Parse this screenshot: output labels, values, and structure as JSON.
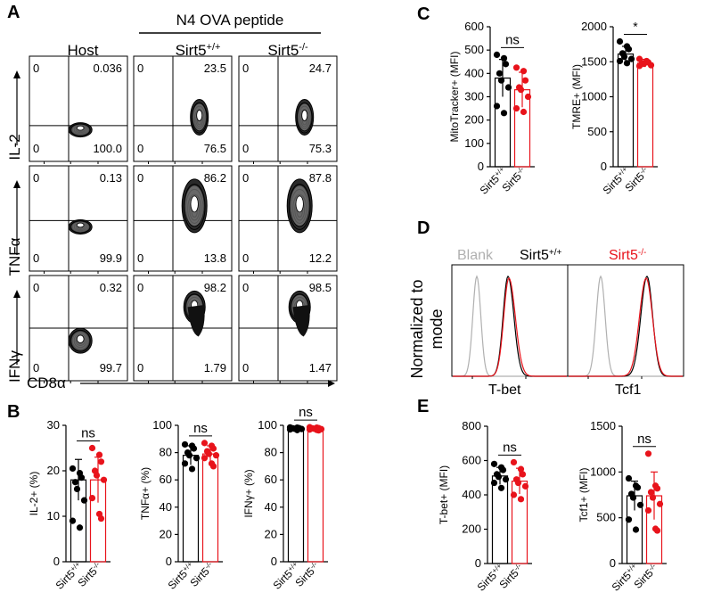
{
  "panel_letters": {
    "a": "A",
    "b": "B",
    "c": "C",
    "d": "D",
    "e": "E"
  },
  "genotypes": {
    "wt": "Sirt5+/+",
    "ko": "Sirt5-/-"
  },
  "colors": {
    "wt": "#000000",
    "ko": "#e8131b",
    "blank": "#b0b0b0",
    "contour_fill": "#8c8c8c"
  },
  "panel_a": {
    "header": "N4 OVA peptide",
    "columns": [
      "Host",
      "Sirt5+/+",
      "Sirt5-/-"
    ],
    "row_labels": [
      "IL-2",
      "TNFα",
      "IFNγ"
    ],
    "x_label": "CD8α",
    "grid": [
      [
        {
          "ul": "0",
          "ur": "0.036",
          "ll": "0",
          "lr": "100.0"
        },
        {
          "ul": "0",
          "ur": "23.5",
          "ll": "0",
          "lr": "76.5"
        },
        {
          "ul": "0",
          "ur": "24.7",
          "ll": "0",
          "lr": "75.3"
        }
      ],
      [
        {
          "ul": "0",
          "ur": "0.13",
          "ll": "0",
          "lr": "99.9"
        },
        {
          "ul": "0",
          "ur": "86.2",
          "ll": "0",
          "lr": "13.8"
        },
        {
          "ul": "0",
          "ur": "87.8",
          "ll": "0",
          "lr": "12.2"
        }
      ],
      [
        {
          "ul": "0",
          "ur": "0.32",
          "ll": "0",
          "lr": "99.7"
        },
        {
          "ul": "0",
          "ur": "98.2",
          "ll": "0",
          "lr": "1.79"
        },
        {
          "ul": "0",
          "ur": "98.5",
          "ll": "0",
          "lr": "1.47"
        }
      ]
    ]
  },
  "panel_d": {
    "legend": [
      "Blank",
      "Sirt5+/+",
      "Sirt5-/-"
    ],
    "y_label_line1": "Normalized to",
    "y_label_line2": "mode",
    "x_labels": [
      "T-bet",
      "Tcf1"
    ]
  },
  "chart_data": [
    {
      "type": "bar",
      "panel": "B",
      "ylabel": "IL-2+ (%)",
      "ylim": [
        0,
        30
      ],
      "yticks": [
        0,
        10,
        20,
        30
      ],
      "significance": "ns",
      "categories": [
        "Sirt5+/+",
        "Sirt5-/-"
      ],
      "series": [
        {
          "name": "Sirt5+/+",
          "mean": 18,
          "sd": 4.5,
          "points": [
            20.5,
            19.5,
            18.5,
            17.5,
            16,
            13.5,
            9,
            7.5
          ]
        },
        {
          "name": "Sirt5-/-",
          "mean": 18,
          "sd": 5,
          "points": [
            25,
            23.5,
            22,
            20,
            19,
            18,
            14,
            10.5,
            9.5
          ]
        }
      ]
    },
    {
      "type": "bar",
      "panel": "B",
      "ylabel": "TNFα+ (%)",
      "ylim": [
        0,
        100
      ],
      "yticks": [
        0,
        20,
        40,
        60,
        80,
        100
      ],
      "significance": "ns",
      "categories": [
        "Sirt5+/+",
        "Sirt5-/-"
      ],
      "series": [
        {
          "name": "Sirt5+/+",
          "mean": 78,
          "sd": 7,
          "points": [
            86,
            85,
            83,
            80,
            78,
            76,
            72,
            68
          ]
        },
        {
          "name": "Sirt5-/-",
          "mean": 79,
          "sd": 6,
          "points": [
            87,
            85,
            83,
            81,
            79,
            78,
            76,
            72,
            70
          ]
        }
      ]
    },
    {
      "type": "bar",
      "panel": "B",
      "ylabel": "IFNγ+ (%)",
      "ylim": [
        0,
        100
      ],
      "yticks": [
        0,
        20,
        40,
        60,
        80,
        100
      ],
      "significance": "ns",
      "categories": [
        "Sirt5+/+",
        "Sirt5-/-"
      ],
      "series": [
        {
          "name": "Sirt5+/+",
          "mean": 97.5,
          "sd": 0.8,
          "points": [
            98.5,
            98.3,
            98,
            97.8,
            97.5,
            97.3,
            97,
            96.5
          ]
        },
        {
          "name": "Sirt5-/-",
          "mean": 97.5,
          "sd": 0.9,
          "points": [
            98.6,
            98.3,
            98,
            97.8,
            97.5,
            97.2,
            96.9,
            96.6,
            96.3
          ]
        }
      ]
    },
    {
      "type": "bar",
      "panel": "C",
      "ylabel": "MitoTracker+ (MFI)",
      "ylim": [
        0,
        600
      ],
      "yticks": [
        0,
        100,
        200,
        300,
        400,
        500,
        600
      ],
      "significance": "ns",
      "categories": [
        "Sirt5+/+",
        "Sirt5-/-"
      ],
      "series": [
        {
          "name": "Sirt5+/+",
          "mean": 380,
          "sd": 80,
          "points": [
            480,
            465,
            440,
            400,
            370,
            340,
            260,
            230
          ]
        },
        {
          "name": "Sirt5-/-",
          "mean": 330,
          "sd": 75,
          "points": [
            425,
            410,
            370,
            340,
            330,
            300,
            250,
            235
          ]
        }
      ]
    },
    {
      "type": "bar",
      "panel": "C",
      "ylabel": "TMRE+ (MFI)",
      "ylim": [
        0,
        2000
      ],
      "yticks": [
        0,
        500,
        1000,
        1500,
        2000
      ],
      "significance": "*",
      "categories": [
        "Sirt5+/+",
        "Sirt5-/-"
      ],
      "series": [
        {
          "name": "Sirt5+/+",
          "mean": 1610,
          "sd": 110,
          "points": [
            1790,
            1720,
            1680,
            1620,
            1570,
            1540,
            1510,
            1480
          ]
        },
        {
          "name": "Sirt5-/-",
          "mean": 1480,
          "sd": 55,
          "points": [
            1540,
            1510,
            1490,
            1480,
            1470,
            1450,
            1440
          ]
        }
      ]
    },
    {
      "type": "bar",
      "panel": "E",
      "ylabel": "T-bet+ (MFI)",
      "ylim": [
        0,
        800
      ],
      "yticks": [
        0,
        200,
        400,
        600,
        800
      ],
      "significance": "ns",
      "categories": [
        "Sirt5+/+",
        "Sirt5-/-"
      ],
      "series": [
        {
          "name": "Sirt5+/+",
          "mean": 510,
          "sd": 50,
          "points": [
            580,
            560,
            545,
            520,
            505,
            490,
            470,
            440
          ]
        },
        {
          "name": "Sirt5-/-",
          "mean": 480,
          "sd": 75,
          "points": [
            590,
            550,
            520,
            490,
            470,
            450,
            400,
            375
          ]
        }
      ]
    },
    {
      "type": "bar",
      "panel": "E",
      "ylabel": "Tcf1+ (MFI)",
      "ylim": [
        0,
        1500
      ],
      "yticks": [
        0,
        500,
        1000,
        1500
      ],
      "significance": "ns",
      "categories": [
        "Sirt5+/+",
        "Sirt5-/-"
      ],
      "series": [
        {
          "name": "Sirt5+/+",
          "mean": 740,
          "sd": 160,
          "points": [
            930,
            850,
            830,
            760,
            720,
            640,
            480,
            370
          ]
        },
        {
          "name": "Sirt5-/-",
          "mean": 740,
          "sd": 260,
          "points": [
            1200,
            850,
            820,
            780,
            720,
            650,
            580,
            380,
            360
          ]
        }
      ]
    }
  ]
}
